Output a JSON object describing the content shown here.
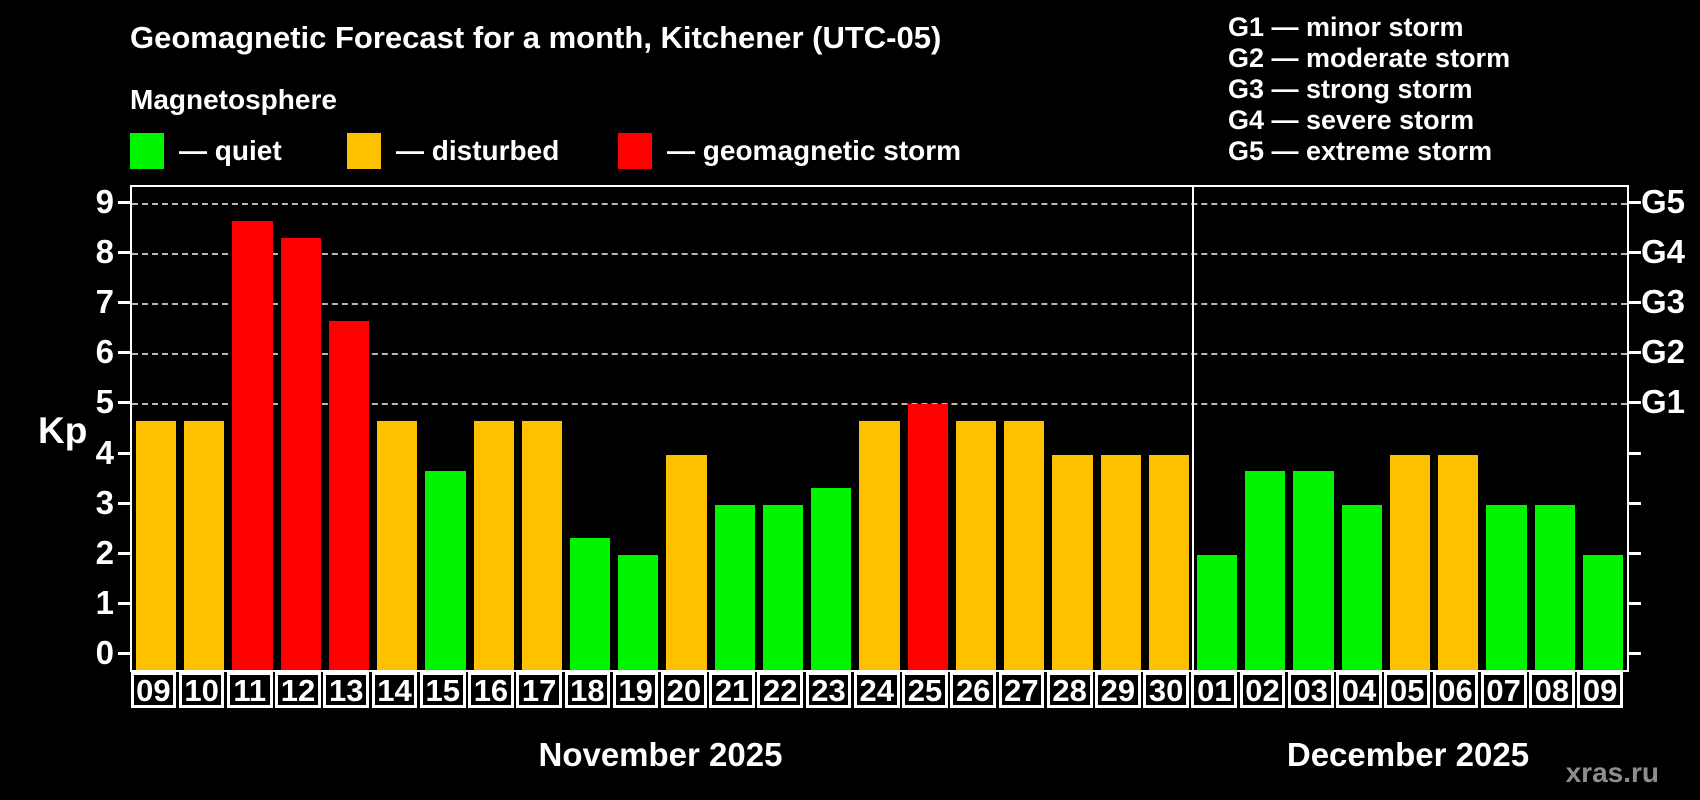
{
  "header": {
    "title": "Geomagnetic Forecast for a month, Kitchener (UTC-05)",
    "subtitle": "Magnetosphere"
  },
  "legend": {
    "items": [
      {
        "key": "quiet",
        "label": "— quiet",
        "color": "#00f400"
      },
      {
        "key": "disturbed",
        "label": "— disturbed",
        "color": "#ffc000"
      },
      {
        "key": "storm",
        "label": "— geomagnetic storm",
        "color": "#ff0000"
      }
    ]
  },
  "g_legend": [
    "G1 — minor storm",
    "G2 — moderate storm",
    "G3 — strong storm",
    "G4 — severe storm",
    "G5 — extreme storm"
  ],
  "watermark": "xras.ru",
  "chart_data": {
    "type": "bar",
    "ylabel": "Kp",
    "ylim": [
      0,
      9
    ],
    "yticks": [
      0,
      1,
      2,
      3,
      4,
      5,
      6,
      7,
      8,
      9
    ],
    "grid": "dashed horizontal lines at Kp 5-9",
    "gridlines_at_kp": [
      5,
      6,
      7,
      8,
      9
    ],
    "g_levels": [
      {
        "label": "G1",
        "kp": 5
      },
      {
        "label": "G2",
        "kp": 6
      },
      {
        "label": "G3",
        "kp": 7
      },
      {
        "label": "G4",
        "kp": 8
      },
      {
        "label": "G5",
        "kp": 9
      }
    ],
    "status_colors": {
      "quiet": "#00f400",
      "disturbed": "#ffc000",
      "storm": "#ff0000"
    },
    "months": [
      {
        "label": "November 2025",
        "bars": [
          {
            "day": "09",
            "kp": 4.67,
            "status": "disturbed"
          },
          {
            "day": "10",
            "kp": 4.67,
            "status": "disturbed"
          },
          {
            "day": "11",
            "kp": 8.67,
            "status": "storm"
          },
          {
            "day": "12",
            "kp": 8.33,
            "status": "storm"
          },
          {
            "day": "13",
            "kp": 6.67,
            "status": "storm"
          },
          {
            "day": "14",
            "kp": 4.67,
            "status": "disturbed"
          },
          {
            "day": "15",
            "kp": 3.67,
            "status": "quiet"
          },
          {
            "day": "16",
            "kp": 4.67,
            "status": "disturbed"
          },
          {
            "day": "17",
            "kp": 4.67,
            "status": "disturbed"
          },
          {
            "day": "18",
            "kp": 2.33,
            "status": "quiet"
          },
          {
            "day": "19",
            "kp": 2.0,
            "status": "quiet"
          },
          {
            "day": "20",
            "kp": 4.0,
            "status": "disturbed"
          },
          {
            "day": "21",
            "kp": 3.0,
            "status": "quiet"
          },
          {
            "day": "22",
            "kp": 3.0,
            "status": "quiet"
          },
          {
            "day": "23",
            "kp": 3.33,
            "status": "quiet"
          },
          {
            "day": "24",
            "kp": 4.67,
            "status": "disturbed"
          },
          {
            "day": "25",
            "kp": 5.0,
            "status": "storm"
          },
          {
            "day": "26",
            "kp": 4.67,
            "status": "disturbed"
          },
          {
            "day": "27",
            "kp": 4.67,
            "status": "disturbed"
          },
          {
            "day": "28",
            "kp": 4.0,
            "status": "disturbed"
          },
          {
            "day": "29",
            "kp": 4.0,
            "status": "disturbed"
          },
          {
            "day": "30",
            "kp": 4.0,
            "status": "disturbed"
          }
        ]
      },
      {
        "label": "December 2025",
        "bars": [
          {
            "day": "01",
            "kp": 2.0,
            "status": "quiet"
          },
          {
            "day": "02",
            "kp": 3.67,
            "status": "quiet"
          },
          {
            "day": "03",
            "kp": 3.67,
            "status": "quiet"
          },
          {
            "day": "04",
            "kp": 3.0,
            "status": "quiet"
          },
          {
            "day": "05",
            "kp": 4.0,
            "status": "disturbed"
          },
          {
            "day": "06",
            "kp": 4.0,
            "status": "disturbed"
          },
          {
            "day": "07",
            "kp": 3.0,
            "status": "quiet"
          },
          {
            "day": "08",
            "kp": 3.0,
            "status": "quiet"
          },
          {
            "day": "09",
            "kp": 2.0,
            "status": "quiet"
          }
        ]
      }
    ]
  }
}
